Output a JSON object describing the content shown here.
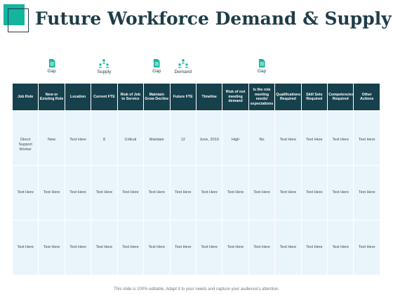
{
  "title": "Future Workforce Demand & Supply",
  "indicators": [
    {
      "label": "Gap",
      "icon": "document-icon",
      "column": 1
    },
    {
      "label": "Supply",
      "icon": "people-hierarchy-icon",
      "column": 3
    },
    {
      "label": "Gap",
      "icon": "document-icon",
      "column": 5
    },
    {
      "label": "Demand",
      "icon": "people-hierarchy-icon",
      "column": 6
    },
    {
      "label": "Gap",
      "icon": "document-icon",
      "column": 9
    }
  ],
  "table": {
    "headers": [
      "Job Role",
      "New or Existing Role",
      "Location",
      "Current FTE",
      "Risk of Job to Service",
      "Maintain Grow Decline",
      "Future FTE",
      "Timeline",
      "Risk of not meeting demand",
      "Is the role meeting needs/ expectations",
      "Qualifications Required",
      "Skill Sets Required",
      "Competencies Required",
      "Other Actions"
    ],
    "rows": [
      [
        "Direct Support Worker",
        "New",
        "Text Here",
        "8",
        "Critical",
        "Maintain",
        "12",
        "June, 2019",
        "High",
        "No",
        "Text Here",
        "Text Here",
        "Text Here",
        "Text Here"
      ],
      [
        "Text Here",
        "Text Here",
        "Text Here",
        "Text Here",
        "Text Here",
        "Text Here",
        "Text Here",
        "Text Here",
        "Text Here",
        "Text Here",
        "Text Here",
        "Text Here",
        "Text Here",
        "Text Here"
      ],
      [
        "Text Here",
        "Text Here",
        "Text Here",
        "Text Here",
        "Text Here",
        "Text Here",
        "Text Here",
        "Text Here",
        "Text Here",
        "Text Here",
        "Text Here",
        "Text Here",
        "Text Here",
        "Text Here"
      ]
    ]
  },
  "footer": "This slide is 100% editable. Adapt it to your needs and capture your audience's attention.",
  "colors": {
    "accent": "#14b59f",
    "header_bg": "#16404c",
    "cell_bg": "#eaf5fb",
    "title": "#1f3d48"
  }
}
